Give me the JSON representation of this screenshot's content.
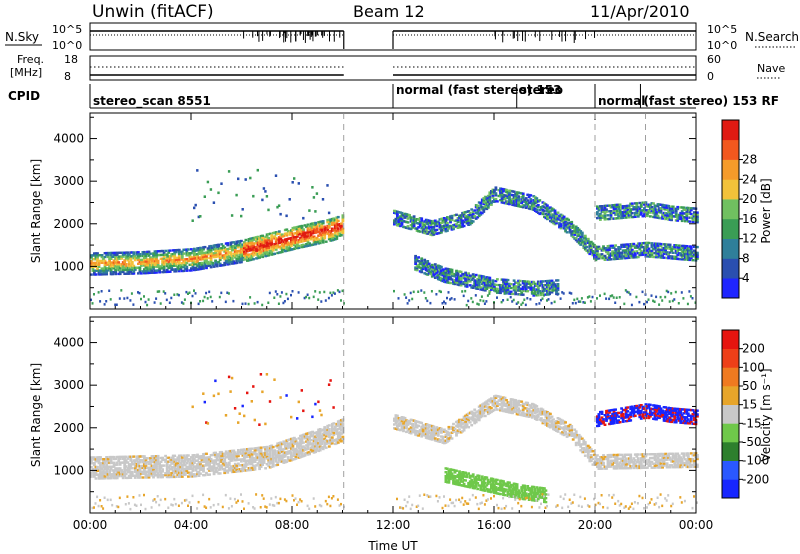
{
  "header": {
    "station": "Unwin (fitACF)",
    "beam": "Beam 12",
    "date": "11/Apr/2010"
  },
  "status_panels": {
    "nsky_label": "N.Sky",
    "nsky_ticks": [
      "10^5",
      "10^0"
    ],
    "nsearch_label": "N.Search",
    "nsearch_ticks": [
      "10^5",
      "10^0"
    ],
    "freq_label_1": "Freq.",
    "freq_label_2": "[MHz]",
    "freq_ticks": [
      "18",
      "8"
    ],
    "nave_label": "Nave",
    "nave_ticks": [
      "60",
      "0"
    ],
    "cpid_label": "CPID",
    "cpid_segments": [
      {
        "start": 0,
        "text": "stereo_scan 8551"
      },
      {
        "start": 12,
        "text": "normal (fast stereo) 153"
      },
      {
        "start": 16.9,
        "text": "stereo"
      },
      {
        "start": 20,
        "text": "normal"
      },
      {
        "start": 21.8,
        "text": "(fast stereo) 153 RF"
      }
    ]
  },
  "chart_data": [
    {
      "type": "heatmap",
      "ylabel": "Slant Range [km]",
      "ylim": [
        0,
        4600
      ],
      "yticks": [
        1000,
        2000,
        3000,
        4000
      ],
      "x_range_hours": [
        0,
        24
      ],
      "data_gaps_hours": [
        [
          10,
          12
        ]
      ],
      "colorbar": {
        "label": "Power [dB]",
        "ticks": [
          "4",
          "8",
          "12",
          "16",
          "20",
          "24",
          "28"
        ],
        "colors": [
          "#1f25ff",
          "#2a4fb0",
          "#2f7f9a",
          "#3a9d55",
          "#70c060",
          "#f2c23a",
          "#f59b2a",
          "#f2581e",
          "#e01a12"
        ]
      },
      "echo_bands": [
        {
          "name": "morning backscatter",
          "x": [
            0,
            2,
            4,
            6,
            8,
            9.5,
            10
          ],
          "y": [
            1050,
            1080,
            1150,
            1350,
            1650,
            1850,
            1950
          ]
        },
        {
          "name": "upper band",
          "x": [
            12,
            13.5,
            15,
            16,
            17.5,
            19,
            20,
            22,
            24
          ],
          "y": [
            2150,
            1900,
            2150,
            2700,
            2500,
            1900,
            1300,
            1400,
            1300
          ]
        },
        {
          "name": "ground scatter",
          "x": [
            12.8,
            14,
            16,
            17.5,
            18.5
          ],
          "y": [
            1100,
            800,
            550,
            480,
            520
          ]
        },
        {
          "name": "evening band",
          "x": [
            20,
            21,
            22,
            23,
            24
          ],
          "y": [
            2250,
            2300,
            2350,
            2250,
            2200
          ]
        }
      ]
    },
    {
      "type": "heatmap",
      "ylabel": "Slant Range [km]",
      "xlabel": "Time UT",
      "ylim": [
        0,
        4600
      ],
      "yticks": [
        1000,
        2000,
        3000,
        4000
      ],
      "x_range_hours": [
        0,
        24
      ],
      "xticks": [
        "00:00",
        "04:00",
        "08:00",
        "12:00",
        "16:00",
        "20:00",
        "00:00"
      ],
      "data_gaps_hours": [
        [
          10,
          12
        ]
      ],
      "colorbar": {
        "label": "Velocity [m s⁻¹]",
        "ticks": [
          "200",
          "100",
          "50",
          "15",
          "-15",
          "-50",
          "-100",
          "-200"
        ],
        "colors": [
          "#1726ff",
          "#2a58ff",
          "#2d7f2d",
          "#6fc84a",
          "#c8c8c8",
          "#e7a52a",
          "#ef7a20",
          "#ee3f18",
          "#e6140f"
        ]
      },
      "echo_bands": [
        {
          "name": "ground scatter grey",
          "x": [
            0,
            4,
            7,
            9,
            10
          ],
          "y": [
            1050,
            1100,
            1300,
            1700,
            1950
          ]
        },
        {
          "name": "afternoon grey",
          "x": [
            12,
            14,
            16,
            17.5,
            19,
            20,
            24
          ],
          "y": [
            2150,
            1800,
            2600,
            2400,
            1900,
            1200,
            1250
          ]
        },
        {
          "name": "green stripe",
          "x": [
            14,
            15.5,
            17,
            18
          ],
          "y": [
            900,
            700,
            500,
            420
          ]
        },
        {
          "name": "blue eastward flow",
          "x": [
            20,
            21,
            22,
            23,
            24
          ],
          "y": [
            2200,
            2300,
            2400,
            2300,
            2250
          ]
        }
      ]
    }
  ]
}
